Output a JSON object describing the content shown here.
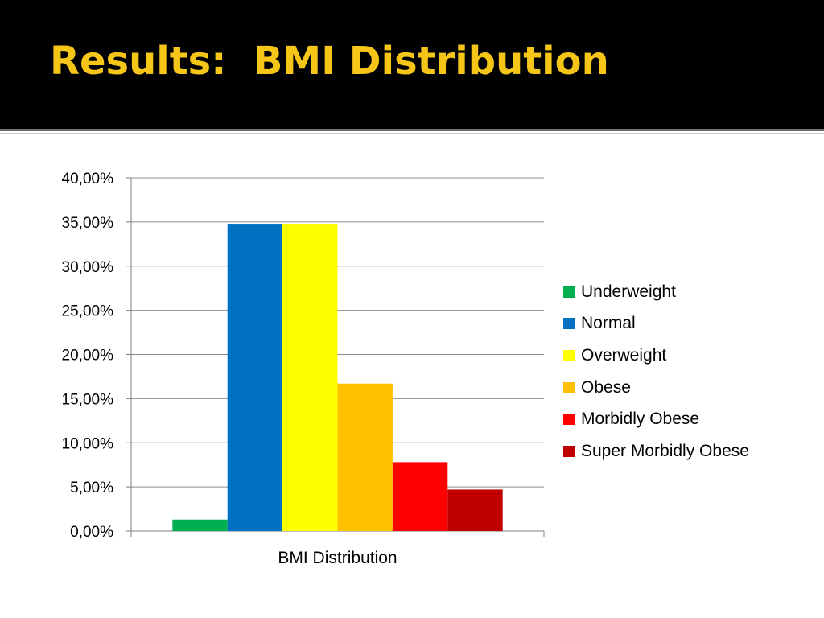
{
  "slide": {
    "title": "Results:  BMI Distribution",
    "title_color": "#f5c518",
    "header_bg": "#000000"
  },
  "chart_data": {
    "type": "bar",
    "categories": [
      "BMI Distribution"
    ],
    "series": [
      {
        "name": "Underweight",
        "values": [
          1.3
        ],
        "color": "#00b050"
      },
      {
        "name": "Normal",
        "values": [
          34.8
        ],
        "color": "#0070c0"
      },
      {
        "name": "Overweight",
        "values": [
          34.8
        ],
        "color": "#ffff00"
      },
      {
        "name": "Obese",
        "values": [
          16.7
        ],
        "color": "#ffc000"
      },
      {
        "name": "Morbidly Obese",
        "values": [
          7.8
        ],
        "color": "#ff0000"
      },
      {
        "name": "Super Morbidly Obese",
        "values": [
          4.7
        ],
        "color": "#c00000"
      }
    ],
    "y_ticks": [
      0,
      5,
      10,
      15,
      20,
      25,
      30,
      35,
      40
    ],
    "y_tick_labels": [
      "0,00%",
      "5,00%",
      "10,00%",
      "15,00%",
      "20,00%",
      "25,00%",
      "30,00%",
      "35,00%",
      "40,00%"
    ],
    "ylim": [
      0,
      40
    ],
    "y_unit": "%",
    "title": "",
    "xlabel": "",
    "ylabel": "",
    "grid": true,
    "legend_position": "right"
  }
}
